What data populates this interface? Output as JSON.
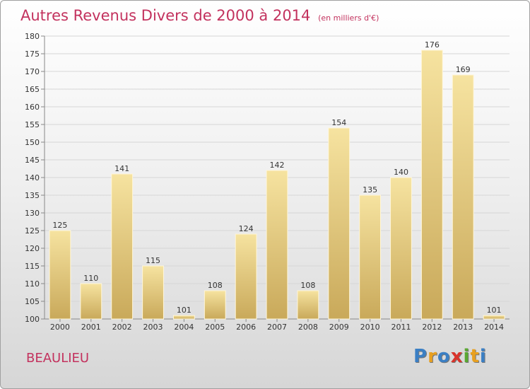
{
  "header": {
    "title": "Autres Revenus Divers de 2000 à 2014",
    "subtitle": "(en milliers d'€)"
  },
  "footer": {
    "commune": "BEAULIEU",
    "logo_letters": [
      "P",
      "r",
      "o",
      "x",
      "i",
      "t",
      "i"
    ],
    "logo_colors": [
      "#3b7fc4",
      "#e8a020",
      "#3b7fc4",
      "#d9342b",
      "#5aa832",
      "#e8a020",
      "#3b7fc4"
    ]
  },
  "colors": {
    "title": "#c3325e",
    "bar_light": "#f6e3a0",
    "bar_dark": "#c9a95a",
    "grid": "#d6d6d6"
  },
  "chart_data": {
    "type": "bar",
    "title": "Autres Revenus Divers de 2000 à 2014",
    "subtitle": "(en milliers d'€)",
    "xlabel": "",
    "ylabel": "",
    "categories": [
      "2000",
      "2001",
      "2002",
      "2003",
      "2004",
      "2005",
      "2006",
      "2007",
      "2008",
      "2009",
      "2010",
      "2011",
      "2012",
      "2013",
      "2014"
    ],
    "values": [
      125,
      110,
      141,
      115,
      101,
      108,
      124,
      142,
      108,
      154,
      135,
      140,
      176,
      169,
      101
    ],
    "ylim": [
      100,
      180
    ],
    "yticks": [
      100,
      105,
      110,
      115,
      120,
      125,
      130,
      135,
      140,
      145,
      150,
      155,
      160,
      165,
      170,
      175,
      180
    ],
    "grid": true,
    "legend": "none"
  }
}
